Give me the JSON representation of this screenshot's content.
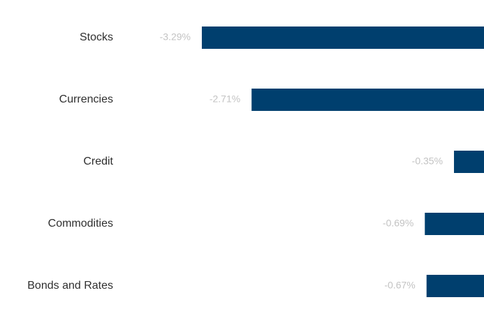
{
  "chart_data": {
    "type": "bar",
    "orientation": "horizontal",
    "categories": [
      "Stocks",
      "Currencies",
      "Credit",
      "Commodities",
      "Bonds and Rates"
    ],
    "values": [
      -3.29,
      -2.71,
      -0.35,
      -0.69,
      -0.67
    ],
    "value_labels": [
      "-3.29%",
      "-2.71%",
      "-0.35%",
      "-0.69%",
      "-0.67%"
    ],
    "title": "",
    "xlabel": "",
    "ylabel": "",
    "grid": false,
    "legend": "none"
  },
  "colors": {
    "bar": "#003f6e",
    "category_text": "#2f2f2f",
    "value_text": "#c3c3c3",
    "background": "#ffffff"
  }
}
